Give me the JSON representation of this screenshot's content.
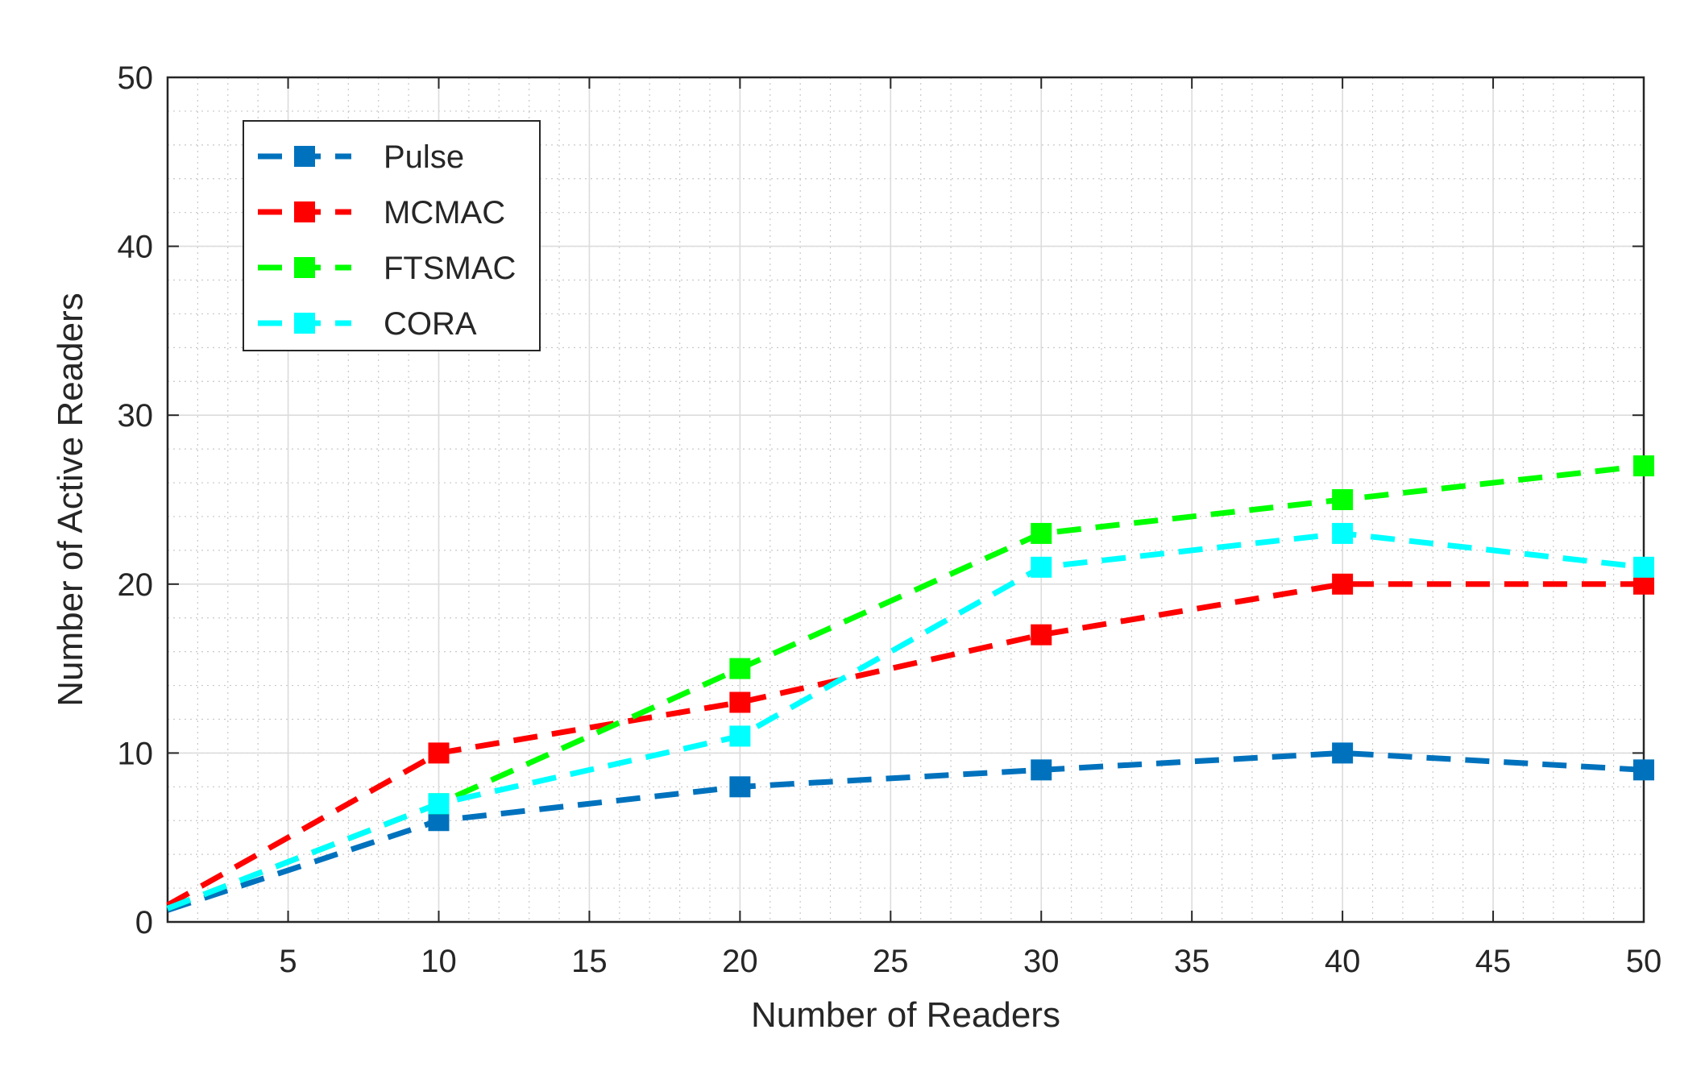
{
  "chart_data": {
    "type": "line",
    "title": "",
    "xlabel": "Number of Readers",
    "ylabel": "Number of Active Readers",
    "xlim": [
      1,
      50
    ],
    "ylim": [
      0,
      50
    ],
    "x_ticks": [
      5,
      10,
      15,
      20,
      25,
      30,
      35,
      40,
      45,
      50
    ],
    "y_ticks": [
      0,
      10,
      20,
      30,
      40,
      50
    ],
    "grid": true,
    "minor_grid": true,
    "legend_position": "top-left",
    "x": [
      1,
      10,
      20,
      30,
      40,
      50
    ],
    "series": [
      {
        "name": "Pulse",
        "color": "#0072BD",
        "values": [
          0.7,
          6,
          8,
          9,
          10,
          9
        ]
      },
      {
        "name": "MCMAC",
        "color": "#FF0000",
        "values": [
          1,
          10,
          13,
          17,
          20,
          20
        ]
      },
      {
        "name": "FTSMAC",
        "color": "#00FF00",
        "values": [
          0.8,
          7,
          15,
          23,
          25,
          27
        ]
      },
      {
        "name": "CORA",
        "color": "#00FFFF",
        "values": [
          0.8,
          7,
          11,
          21,
          23,
          21
        ]
      }
    ]
  }
}
